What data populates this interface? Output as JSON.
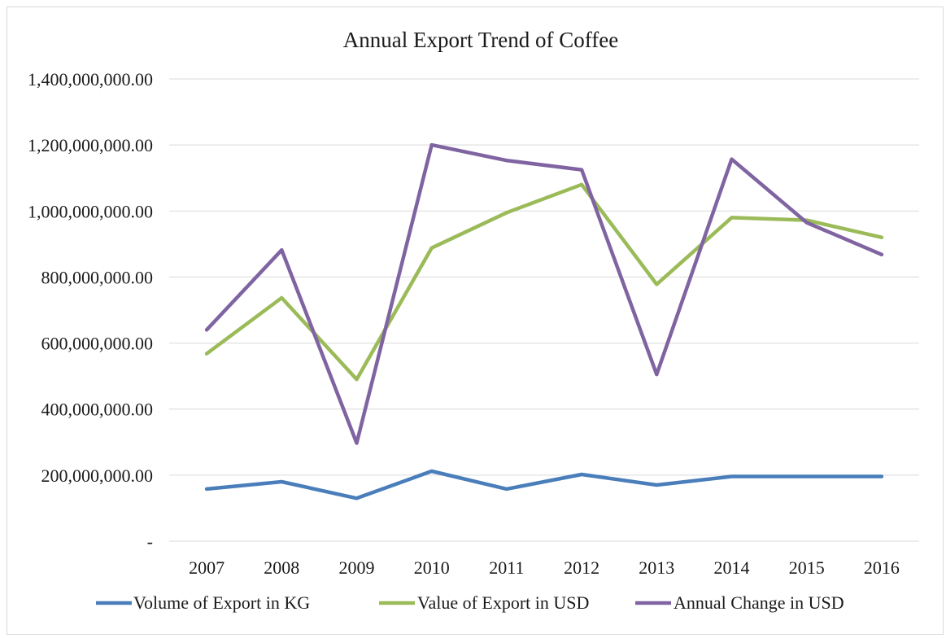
{
  "chart_data": {
    "type": "line",
    "title": "Annual Export Trend of Coffee",
    "categories": [
      "2007",
      "2008",
      "2009",
      "2010",
      "2011",
      "2012",
      "2013",
      "2014",
      "2015",
      "2016"
    ],
    "ylim": [
      0,
      1400000000
    ],
    "yticks": [
      0,
      200000000,
      400000000,
      600000000,
      800000000,
      1000000000,
      1200000000,
      1400000000
    ],
    "ytick_labels": [
      "-",
      "200,000,000.00",
      "400,000,000.00",
      "600,000,000.00",
      "800,000,000.00",
      "1,000,000,000.00",
      "1,200,000,000.00",
      "1,400,000,000.00"
    ],
    "grid": true,
    "legend_position": "bottom",
    "series": [
      {
        "name": "Volume of Export in KG",
        "color": "#4a7ebb",
        "values": [
          158000000,
          180000000,
          130000000,
          212000000,
          158000000,
          202000000,
          170000000,
          196000000,
          196000000,
          196000000
        ]
      },
      {
        "name": "Value of Export in USD",
        "color": "#9bbb59",
        "values": [
          568000000,
          737000000,
          490000000,
          888000000,
          995000000,
          1080000000,
          778000000,
          980000000,
          972000000,
          920000000
        ]
      },
      {
        "name": "Annual Change in USD",
        "color": "#8064a2",
        "values": [
          640000000,
          882000000,
          297000000,
          1200000000,
          1153000000,
          1125000000,
          505000000,
          1157000000,
          965000000,
          868000000
        ]
      }
    ]
  }
}
